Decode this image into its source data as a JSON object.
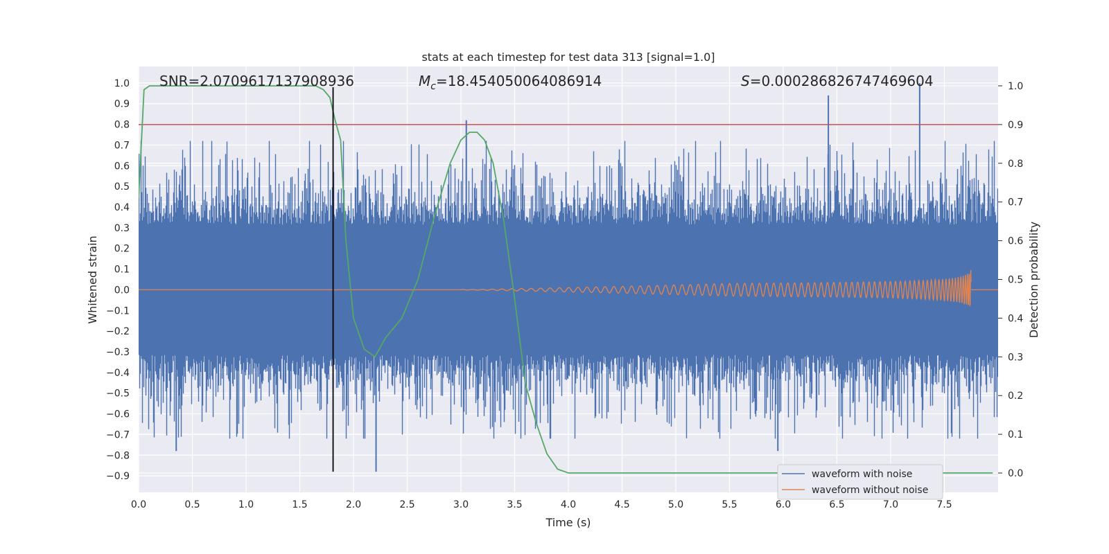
{
  "chart_data": {
    "type": "line",
    "title": "stats at each timestep for test data 313 [signal=1.0]",
    "xlabel": "Time (s)",
    "ylabel": "Whitened strain",
    "y2label": "Detection probability",
    "xlim": [
      0.0,
      8.0
    ],
    "ylim": [
      -0.98,
      1.08
    ],
    "y2lim": [
      -0.05,
      1.05
    ],
    "xticks": [
      "0.0",
      "0.5",
      "1.0",
      "1.5",
      "2.0",
      "2.5",
      "3.0",
      "3.5",
      "4.0",
      "4.5",
      "5.0",
      "5.5",
      "6.0",
      "6.5",
      "7.0",
      "7.5"
    ],
    "yticks": [
      "1.0",
      "0.9",
      "0.8",
      "0.7",
      "0.6",
      "0.5",
      "0.4",
      "0.3",
      "0.2",
      "0.1",
      "0.0",
      "−0.1",
      "−0.2",
      "−0.3",
      "−0.4",
      "−0.5",
      "−0.6",
      "−0.7",
      "−0.8",
      "−0.9"
    ],
    "y2ticks": [
      "1.0",
      "0.9",
      "0.8",
      "0.7",
      "0.6",
      "0.5",
      "0.4",
      "0.3",
      "0.2",
      "0.1",
      "0.0"
    ],
    "grid": true,
    "legend_position": "lower-right",
    "annotations": {
      "snr": "SNR=2.0709617137908936",
      "mc_symbol": "M",
      "mc_sub": "c",
      "mc_value": "=18.454050064086914",
      "s_symbol": "S",
      "s_value": "=0.000286826747469604"
    },
    "threshold_y2": 0.9,
    "vertical_marker_x": 1.81,
    "series": [
      {
        "name": "waveform with noise",
        "color": "#4c72b0",
        "description_kind": "noise envelope (max/min spikes per bin)",
        "x_range": [
          0.0,
          8.0
        ],
        "typical_amplitude": 0.42,
        "peak_spikes": [
          {
            "x": 2.21,
            "y": -0.88
          },
          {
            "x": 3.05,
            "y": 0.82
          },
          {
            "x": 6.42,
            "y": 0.94
          },
          {
            "x": 7.27,
            "y": 1.0
          },
          {
            "x": 0.35,
            "y": -0.78
          },
          {
            "x": 5.95,
            "y": -0.78
          }
        ]
      },
      {
        "name": "waveform without noise",
        "color": "#dd8452",
        "description_kind": "chirp",
        "x_range": [
          0.0,
          7.75
        ],
        "end_amplitude": 0.1
      },
      {
        "name": "Detection probability",
        "color": "#55a868",
        "axis": "right",
        "x": [
          0.0,
          0.05,
          0.1,
          0.3,
          0.5,
          1.0,
          1.5,
          1.65,
          1.72,
          1.78,
          1.83,
          1.88,
          1.93,
          2.0,
          2.1,
          2.2,
          2.3,
          2.45,
          2.6,
          2.75,
          2.9,
          3.0,
          3.08,
          3.15,
          3.22,
          3.3,
          3.4,
          3.5,
          3.6,
          3.7,
          3.8,
          3.9,
          4.0,
          4.2,
          5.0,
          6.0,
          7.0,
          7.95
        ],
        "values": [
          0.71,
          0.99,
          1.0,
          1.0,
          1.0,
          1.0,
          1.0,
          1.0,
          0.99,
          0.97,
          0.91,
          0.86,
          0.6,
          0.4,
          0.32,
          0.3,
          0.35,
          0.4,
          0.5,
          0.66,
          0.8,
          0.86,
          0.88,
          0.88,
          0.86,
          0.8,
          0.65,
          0.45,
          0.23,
          0.13,
          0.05,
          0.01,
          0.0,
          0.0,
          0.0,
          0.0,
          0.0,
          0.0
        ]
      }
    ]
  }
}
